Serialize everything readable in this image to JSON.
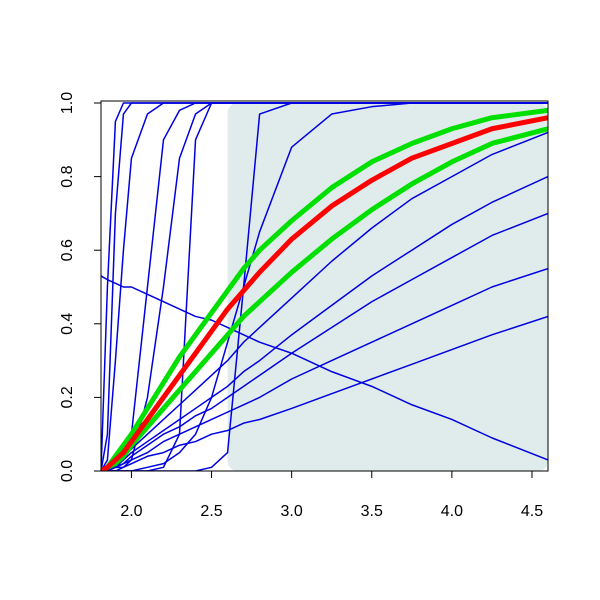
{
  "chart_data": {
    "type": "line",
    "x": [
      1.81,
      1.85,
      1.9,
      1.95,
      2.0,
      2.1,
      2.2,
      2.3,
      2.4,
      2.5,
      2.6,
      2.7,
      2.8,
      3.0,
      3.25,
      3.5,
      3.75,
      4.0,
      4.25,
      4.6
    ],
    "xlim": [
      1.81,
      4.6
    ],
    "ylim": [
      0,
      1
    ],
    "xticks": [
      {
        "value": 2,
        "label": "2.0"
      },
      2.5,
      {
        "value": 3,
        "label": "3.0"
      },
      3.5,
      {
        "value": 4,
        "label": "4.0"
      },
      4.5
    ],
    "yticks": [
      {
        "value": 0,
        "label": "0.0"
      },
      0.2,
      0.4,
      0.6,
      0.8,
      {
        "value": 1,
        "label": "1.0"
      }
    ],
    "shade": {
      "x": [
        2.6,
        4.6
      ],
      "y": [
        0,
        1
      ],
      "color": "#e0ecec"
    },
    "series": [
      {
        "color": "#0000e0",
        "width": 1.5,
        "values": [
          0,
          0.1,
          0.7,
          0.97,
          1,
          1,
          1,
          1,
          1,
          1,
          1,
          1,
          1,
          1,
          1,
          1,
          1,
          1,
          1,
          1
        ]
      },
      {
        "color": "#0000e0",
        "width": 1.5,
        "values": [
          0,
          0.5,
          0.95,
          1,
          1,
          1,
          1,
          1,
          1,
          1,
          1,
          1,
          1,
          1,
          1,
          1,
          1,
          1,
          1,
          1
        ]
      },
      {
        "color": "#0000e0",
        "width": 1.5,
        "values": [
          0,
          0.03,
          0.3,
          0.6,
          0.85,
          0.97,
          1,
          1,
          1,
          1,
          1,
          1,
          1,
          1,
          1,
          1,
          1,
          1,
          1,
          1
        ]
      },
      {
        "color": "#0000e0",
        "width": 1.5,
        "values": [
          0,
          0,
          0.01,
          0.03,
          0.1,
          0.5,
          0.9,
          0.98,
          1,
          1,
          1,
          1,
          1,
          1,
          1,
          1,
          1,
          1,
          1,
          1
        ]
      },
      {
        "color": "#0000e0",
        "width": 1.5,
        "values": [
          0,
          0,
          0,
          0.01,
          0.03,
          0.2,
          0.5,
          0.85,
          0.97,
          1,
          1,
          1,
          1,
          1,
          1,
          1,
          1,
          1,
          1,
          1
        ]
      },
      {
        "color": "#0000e0",
        "width": 1.5,
        "values": [
          0,
          0,
          0,
          0,
          0,
          0,
          0.01,
          0.1,
          0.9,
          1,
          1,
          1,
          1,
          1,
          1,
          1,
          1,
          1,
          1,
          1
        ]
      },
      {
        "color": "#0000e0",
        "width": 1.5,
        "values": [
          0,
          0,
          0,
          0,
          0,
          0,
          0,
          0,
          0,
          0.01,
          0.05,
          0.5,
          0.97,
          1,
          1,
          1,
          1,
          1,
          1,
          1
        ]
      },
      {
        "color": "#0000e0",
        "width": 1.5,
        "values": [
          0,
          0,
          0,
          0,
          0,
          0.01,
          0.02,
          0.05,
          0.1,
          0.2,
          0.35,
          0.5,
          0.65,
          0.88,
          0.97,
          0.99,
          1,
          1,
          1,
          1
        ]
      },
      {
        "color": "#0000e0",
        "width": 1.5,
        "values": [
          0,
          0.01,
          0.02,
          0.04,
          0.06,
          0.1,
          0.14,
          0.18,
          0.22,
          0.26,
          0.3,
          0.35,
          0.39,
          0.47,
          0.57,
          0.66,
          0.74,
          0.8,
          0.86,
          0.92
        ]
      },
      {
        "color": "#0000e0",
        "width": 1.5,
        "values": [
          0,
          0.01,
          0.02,
          0.03,
          0.05,
          0.08,
          0.11,
          0.14,
          0.17,
          0.2,
          0.23,
          0.27,
          0.3,
          0.37,
          0.45,
          0.53,
          0.6,
          0.67,
          0.73,
          0.8
        ]
      },
      {
        "color": "#0000e0",
        "width": 1.5,
        "values": [
          0,
          0.01,
          0.01,
          0.02,
          0.04,
          0.07,
          0.1,
          0.12,
          0.15,
          0.17,
          0.2,
          0.23,
          0.26,
          0.32,
          0.39,
          0.46,
          0.52,
          0.58,
          0.64,
          0.7
        ]
      },
      {
        "color": "#0000e0",
        "width": 1.5,
        "values": [
          0,
          0,
          0.01,
          0.02,
          0.03,
          0.05,
          0.08,
          0.1,
          0.12,
          0.14,
          0.16,
          0.18,
          0.2,
          0.25,
          0.3,
          0.35,
          0.4,
          0.45,
          0.5,
          0.55
        ]
      },
      {
        "color": "#0000e0",
        "width": 1.5,
        "values": [
          0,
          0,
          0.01,
          0.01,
          0.02,
          0.04,
          0.05,
          0.07,
          0.08,
          0.1,
          0.11,
          0.13,
          0.14,
          0.17,
          0.21,
          0.25,
          0.29,
          0.33,
          0.37,
          0.42
        ]
      },
      {
        "color": "#0000e0",
        "width": 1.5,
        "values": [
          0.53,
          0.52,
          0.51,
          0.5,
          0.5,
          0.48,
          0.46,
          0.44,
          0.42,
          0.41,
          0.39,
          0.37,
          0.35,
          0.32,
          0.27,
          0.23,
          0.18,
          0.14,
          0.09,
          0.03
        ]
      },
      {
        "color": "#00e000",
        "width": 5,
        "values": [
          0,
          0.01,
          0.04,
          0.07,
          0.1,
          0.17,
          0.24,
          0.31,
          0.37,
          0.43,
          0.49,
          0.55,
          0.6,
          0.68,
          0.77,
          0.84,
          0.89,
          0.93,
          0.96,
          0.98
        ]
      },
      {
        "color": "#00e000",
        "width": 5,
        "values": [
          0,
          0.01,
          0.02,
          0.04,
          0.07,
          0.12,
          0.17,
          0.22,
          0.27,
          0.32,
          0.37,
          0.42,
          0.46,
          0.54,
          0.63,
          0.71,
          0.78,
          0.84,
          0.89,
          0.93
        ]
      },
      {
        "color": "#ff0000",
        "width": 5,
        "values": [
          0,
          0.01,
          0.03,
          0.05,
          0.08,
          0.14,
          0.2,
          0.26,
          0.32,
          0.38,
          0.44,
          0.49,
          0.54,
          0.63,
          0.72,
          0.79,
          0.85,
          0.89,
          0.93,
          0.96
        ]
      }
    ]
  }
}
